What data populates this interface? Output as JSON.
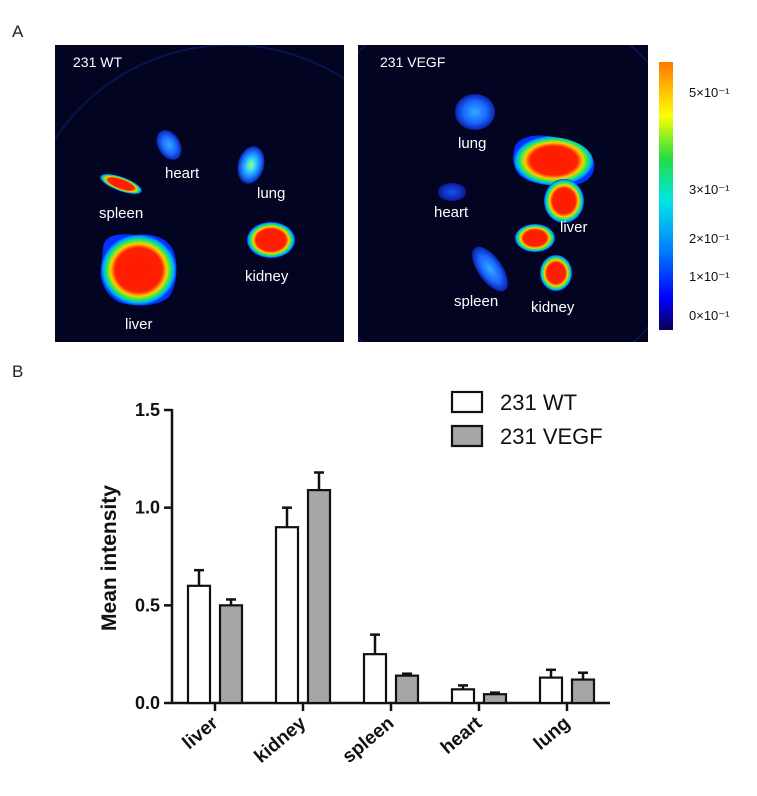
{
  "panel_a": {
    "letter": "A",
    "left_image": {
      "title": "231 WT",
      "organs": {
        "heart": "heart",
        "lung": "lung",
        "spleen": "spleen",
        "kidney": "kidney",
        "liver": "liver"
      }
    },
    "right_image": {
      "title": "231 VEGF",
      "organs": {
        "lung": "lung",
        "heart": "heart",
        "liver": "liver",
        "spleen": "spleen",
        "kidney": "kidney"
      }
    },
    "colorbar": {
      "labels": [
        "5×10⁻¹",
        "3×10⁻¹",
        "2×10⁻¹",
        "1×10⁻¹",
        "0×10⁻¹"
      ],
      "colors": [
        "#ff7700",
        "#ffff00",
        "#22dd44",
        "#00e5e5",
        "#0080ff",
        "#0000ff",
        "#0a0055"
      ]
    }
  },
  "panel_b": {
    "letter": "B"
  },
  "chart_data": {
    "type": "bar",
    "title": "",
    "xlabel": "",
    "ylabel": "Mean intensity",
    "ylim": [
      0,
      1.5
    ],
    "yticks": [
      0.0,
      0.5,
      1.0,
      1.5
    ],
    "ytick_labels": [
      "0.0",
      "0.5",
      "1.0",
      "1.5"
    ],
    "categories": [
      "liver",
      "kidney",
      "spleen",
      "heart",
      "lung"
    ],
    "series": [
      {
        "name": "231 WT",
        "color": "#ffffff",
        "values": [
          0.6,
          0.9,
          0.25,
          0.07,
          0.13
        ],
        "errors": [
          0.08,
          0.1,
          0.1,
          0.02,
          0.04
        ]
      },
      {
        "name": "231 VEGF",
        "color": "#a6a6a6",
        "values": [
          0.5,
          1.09,
          0.14,
          0.045,
          0.12
        ],
        "errors": [
          0.03,
          0.09,
          0.01,
          0.008,
          0.035
        ]
      }
    ],
    "legend_position": "top-right"
  }
}
